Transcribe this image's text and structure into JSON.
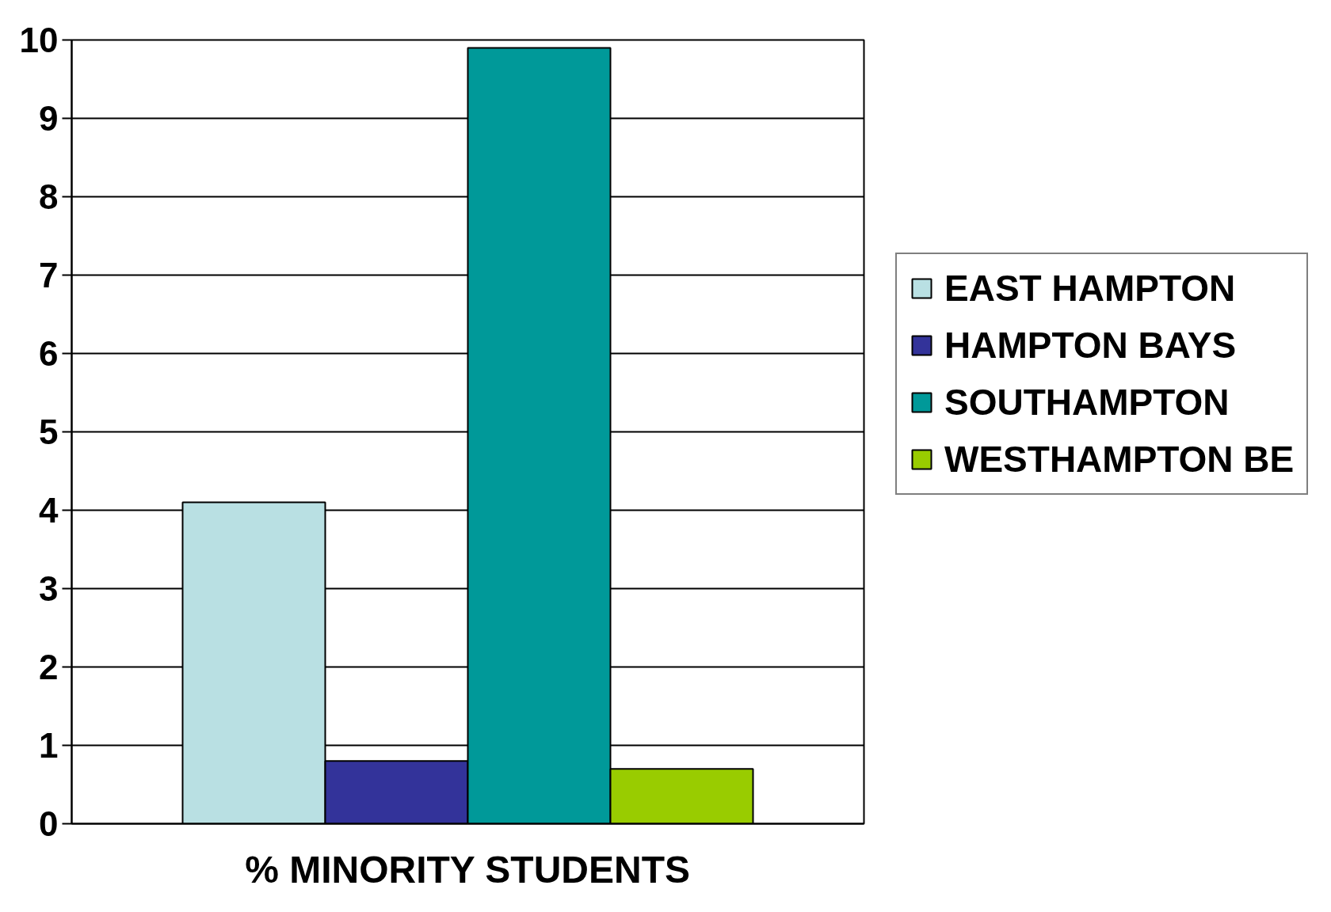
{
  "chart_data": {
    "type": "bar",
    "categories": [
      "% MINORITY STUDENTS"
    ],
    "series": [
      {
        "name": "EAST HAMPTON",
        "color": "#b9e0e3",
        "values": [
          4.1
        ]
      },
      {
        "name": "HAMPTON BAYS",
        "color": "#33339a",
        "values": [
          0.8
        ]
      },
      {
        "name": "SOUTHAMPTON",
        "color": "#009999",
        "values": [
          9.9
        ]
      },
      {
        "name": "WESTHAMPTON BE",
        "color": "#99cc00",
        "values": [
          0.7
        ]
      }
    ],
    "ylim": [
      0,
      10
    ],
    "yticks": [
      0,
      1,
      2,
      3,
      4,
      5,
      6,
      7,
      8,
      9,
      10
    ],
    "grid": "y",
    "legend": "right"
  }
}
